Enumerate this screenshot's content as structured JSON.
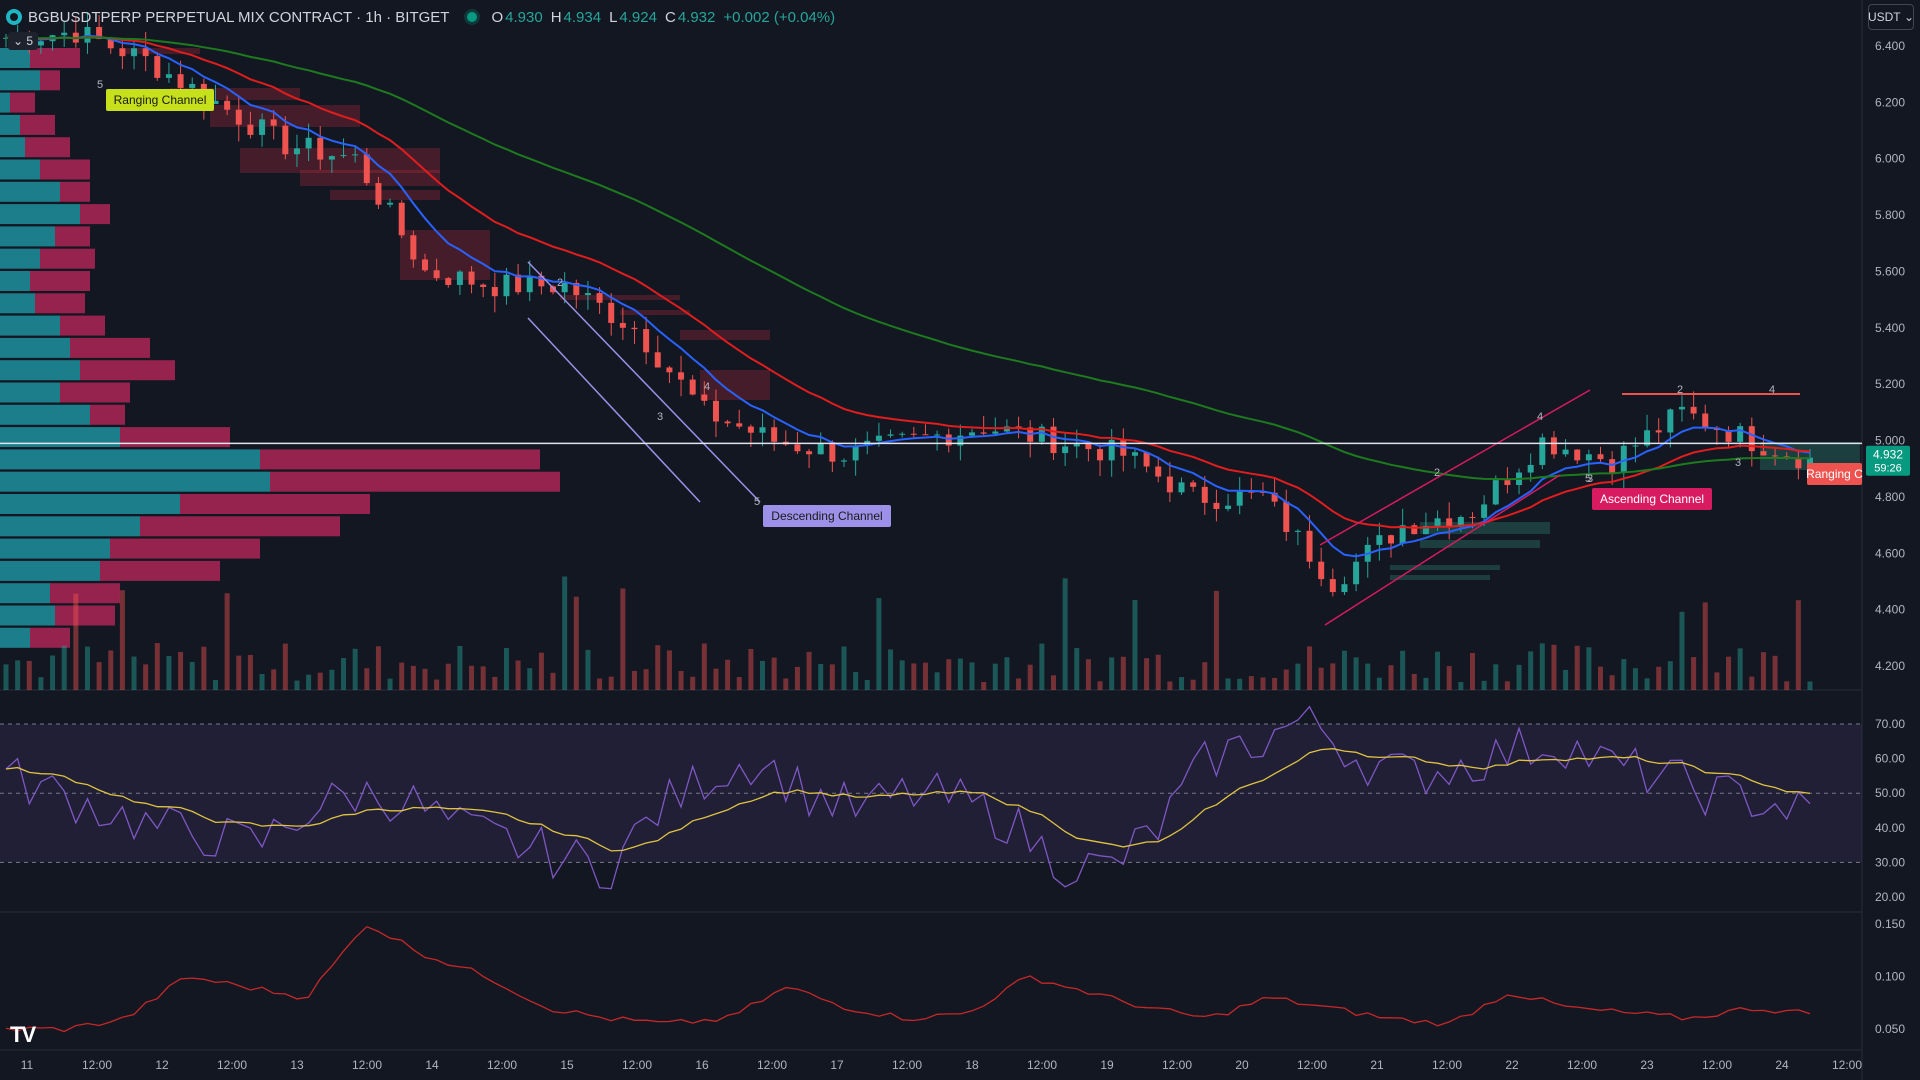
{
  "header": {
    "symbol": "BGBUSDTPERP PERPETUAL MIX CONTRACT · 1h · BITGET",
    "o_label": "O",
    "o_value": "4.930",
    "h_label": "H",
    "h_value": "4.934",
    "l_label": "L",
    "l_value": "4.924",
    "c_label": "C",
    "c_value": "4.932",
    "change": "+0.002 (+0.04%)"
  },
  "currency_button": "USDT",
  "collapse_label": "5",
  "colors": {
    "background": "#131722",
    "up": "#26a69a",
    "down": "#ef5350",
    "ema_fast": "#2962ff",
    "ema_mid": "#e11d1d",
    "ema_slow": "#1e7a1e",
    "rsi": "#7e57c2",
    "rsi_ma": "#e0c341",
    "atr": "#c62828"
  },
  "chart_data": [
    {
      "type": "candlestick",
      "title": "",
      "xlabel": "",
      "ylabel": "",
      "x_ticks": [
        "11",
        "12:00",
        "12",
        "12:00",
        "13",
        "12:00",
        "14",
        "12:00",
        "15",
        "12:00",
        "16",
        "12:00",
        "17",
        "12:00",
        "18",
        "12:00",
        "19",
        "12:00",
        "20",
        "12:00",
        "21",
        "12:00",
        "22",
        "12:00",
        "23",
        "12:00",
        "24",
        "12:00"
      ],
      "y_ticks": [
        "6.400",
        "6.200",
        "6.000",
        "5.800",
        "5.600",
        "5.400",
        "5.200",
        "5.000",
        "4.800",
        "4.600",
        "4.400",
        "4.200"
      ],
      "ylim": [
        4.15,
        6.55
      ],
      "close_anchors": [
        {
          "x": 0,
          "y": 6.43
        },
        {
          "x": 6,
          "y": 6.45
        },
        {
          "x": 12,
          "y": 6.35
        },
        {
          "x": 18,
          "y": 6.2
        },
        {
          "x": 24,
          "y": 6.05
        },
        {
          "x": 30,
          "y": 6.0
        },
        {
          "x": 36,
          "y": 5.6
        },
        {
          "x": 42,
          "y": 5.55
        },
        {
          "x": 48,
          "y": 5.55
        },
        {
          "x": 54,
          "y": 5.4
        },
        {
          "x": 60,
          "y": 5.1
        },
        {
          "x": 66,
          "y": 5.0
        },
        {
          "x": 72,
          "y": 4.95
        },
        {
          "x": 78,
          "y": 5.0
        },
        {
          "x": 84,
          "y": 5.05
        },
        {
          "x": 90,
          "y": 5.0
        },
        {
          "x": 96,
          "y": 4.95
        },
        {
          "x": 102,
          "y": 4.8
        },
        {
          "x": 108,
          "y": 4.8
        },
        {
          "x": 114,
          "y": 4.5
        },
        {
          "x": 120,
          "y": 4.7
        },
        {
          "x": 126,
          "y": 4.75
        },
        {
          "x": 132,
          "y": 5.0
        },
        {
          "x": 138,
          "y": 4.93
        },
        {
          "x": 144,
          "y": 5.1
        },
        {
          "x": 150,
          "y": 5.0
        },
        {
          "x": 155,
          "y": 4.93
        }
      ],
      "last_price": "4.932",
      "countdown": "59:26",
      "horizontal_line": 4.99,
      "channels": [
        {
          "label": "Ranging Channel",
          "color": "#c6e01b"
        },
        {
          "label": "Descending Channel",
          "color": "#9c90e8"
        },
        {
          "label": "Ascending Channel",
          "color": "#d81b60"
        },
        {
          "label": "Ranging C",
          "color": "#ef5350"
        }
      ],
      "wave_labels": [
        "5",
        "2",
        "3",
        "4",
        "5",
        "3",
        "2",
        "4",
        "5",
        "2",
        "3",
        "4"
      ]
    },
    {
      "type": "line",
      "title": "",
      "y_ticks": [
        "70.00",
        "60.00",
        "50.00",
        "40.00",
        "30.00",
        "20.00"
      ],
      "ylim": [
        17,
        76
      ],
      "bands": [
        30,
        50,
        70
      ],
      "series": [
        {
          "values_anchors": [
            55,
            50,
            45,
            40,
            38,
            35,
            45,
            50,
            48,
            40,
            36,
            32,
            28,
            45,
            55,
            60,
            50,
            45,
            50,
            48,
            42,
            30,
            28,
            40,
            60,
            65,
            72,
            60,
            55,
            58,
            62,
            65,
            58,
            55,
            50,
            48,
            44
          ]
        }
      ]
    },
    {
      "type": "line",
      "title": "",
      "y_ticks": [
        "0.150",
        "0.100",
        "0.050"
      ],
      "ylim": [
        0.035,
        0.16
      ],
      "series": [
        {
          "values_anchors": [
            0.05,
            0.05,
            0.06,
            0.1,
            0.09,
            0.08,
            0.15,
            0.12,
            0.1,
            0.07,
            0.06,
            0.055,
            0.06,
            0.09,
            0.07,
            0.06,
            0.065,
            0.1,
            0.085,
            0.07,
            0.06,
            0.08,
            0.07,
            0.06,
            0.055,
            0.085,
            0.07,
            0.065,
            0.06,
            0.07,
            0.065
          ]
        }
      ]
    }
  ]
}
